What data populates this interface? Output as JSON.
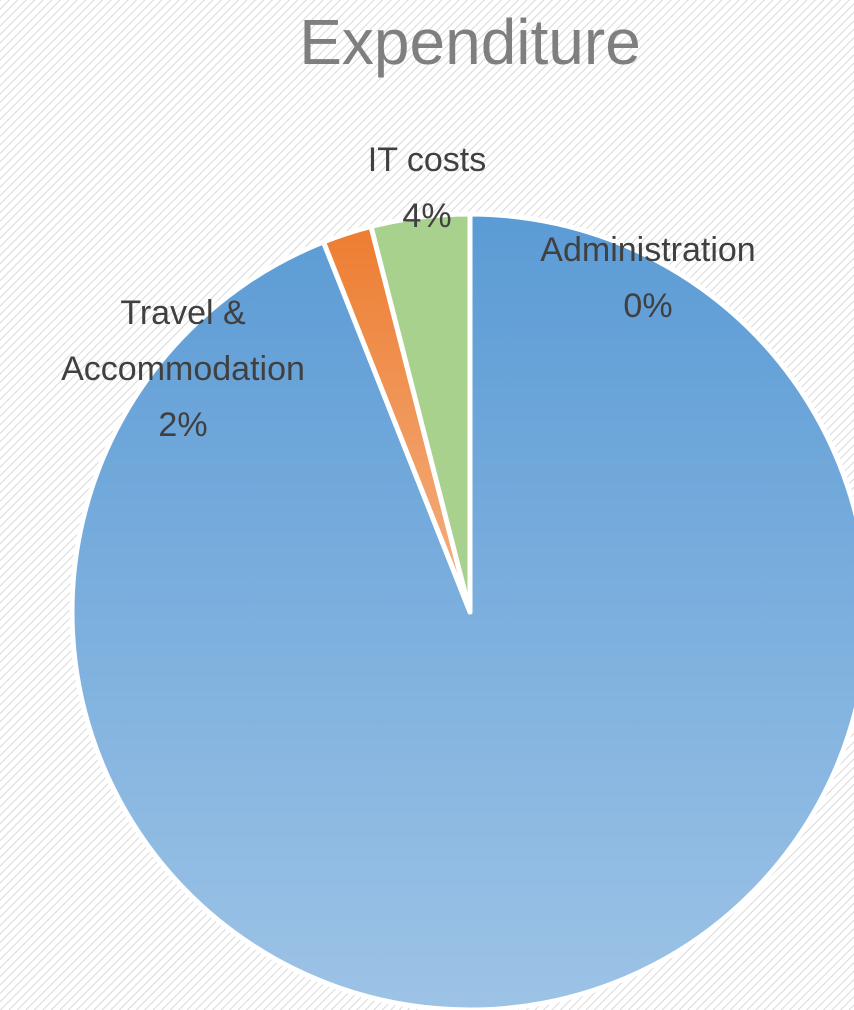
{
  "chart_data": {
    "type": "pie",
    "title": "Expenditure",
    "categories": [
      "Administration",
      null,
      "Travel & Accommodation",
      "IT costs"
    ],
    "values": [
      0,
      94,
      2,
      4
    ],
    "value_labels": [
      "0%",
      null,
      "2%",
      "4%"
    ],
    "colors": [
      "#5b9bd5",
      "#5b9bd5",
      "#ed7d31",
      "#a9d18e"
    ]
  }
}
